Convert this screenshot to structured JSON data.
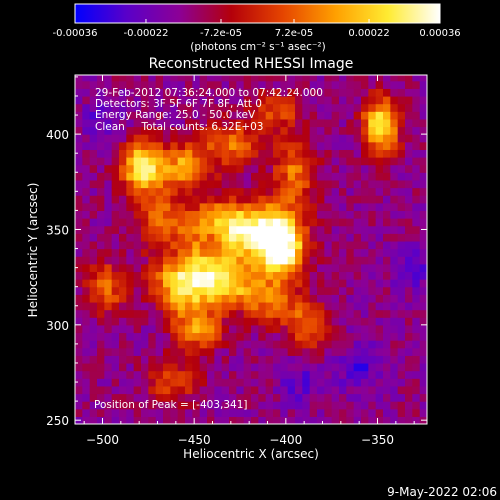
{
  "colorbar": {
    "ticks": [
      "-0.00036",
      "-0.00022",
      "-7.2e-05",
      "7.2e-05",
      "0.00022",
      "0.00036"
    ],
    "tick_values": [
      -0.00036,
      -0.00022,
      -7.2e-05,
      7.2e-05,
      0.00022,
      0.00036
    ],
    "range": [
      -0.00036,
      0.00036
    ],
    "unit_label": "(photons cm⁻² s⁻¹ asec⁻²)",
    "colors": [
      "#0000ff",
      "#5a00c8",
      "#8c0096",
      "#b4000a",
      "#e64600",
      "#ffa000",
      "#ffeb32",
      "#ffffff"
    ]
  },
  "chart_data": {
    "type": "heatmap",
    "title": "Reconstructed RHESSI Image",
    "xlabel": "Heliocentric X (arcsec)",
    "ylabel": "Heliocentric Y (arcsec)",
    "xlim": [
      -515,
      -323
    ],
    "ylim": [
      248,
      431
    ],
    "xticks": [
      -500,
      -450,
      -400,
      -350
    ],
    "yticks": [
      250,
      300,
      350,
      400
    ],
    "xtick_labels": [
      "−500",
      "−450",
      "−400",
      "−350"
    ],
    "ytick_labels": [
      "250",
      "300",
      "350",
      "400"
    ],
    "annotations": [
      "29-Feb-2012 07:36:24.000 to 07:42:24.000",
      "Detectors: 3F 5F 6F 7F 8F, Att 0",
      "Energy Range: 25.0 - 50.0 keV",
      "Clean     Total counts: 6.32E+03"
    ],
    "peak_label": "Position of Peak = [-403,341]",
    "peak": [
      -403,
      341
    ],
    "sources": [
      {
        "x": -403,
        "y": 341,
        "amp": 1.0,
        "sx": 9,
        "sy": 12
      },
      {
        "x": -420,
        "y": 350,
        "amp": 0.75,
        "sx": 14,
        "sy": 10
      },
      {
        "x": -440,
        "y": 345,
        "amp": 0.55,
        "sx": 10,
        "sy": 14
      },
      {
        "x": -455,
        "y": 322,
        "amp": 0.8,
        "sx": 12,
        "sy": 10
      },
      {
        "x": -430,
        "y": 322,
        "amp": 0.55,
        "sx": 10,
        "sy": 8
      },
      {
        "x": -478,
        "y": 383,
        "amp": 0.85,
        "sx": 8,
        "sy": 9
      },
      {
        "x": -455,
        "y": 383,
        "amp": 0.55,
        "sx": 9,
        "sy": 8
      },
      {
        "x": -348,
        "y": 405,
        "amp": 0.8,
        "sx": 7,
        "sy": 10
      },
      {
        "x": -430,
        "y": 395,
        "amp": 0.45,
        "sx": 12,
        "sy": 8
      },
      {
        "x": -395,
        "y": 380,
        "amp": 0.45,
        "sx": 8,
        "sy": 12
      },
      {
        "x": -468,
        "y": 355,
        "amp": 0.45,
        "sx": 10,
        "sy": 10
      },
      {
        "x": -448,
        "y": 298,
        "amp": 0.55,
        "sx": 9,
        "sy": 8
      },
      {
        "x": -388,
        "y": 300,
        "amp": 0.45,
        "sx": 8,
        "sy": 9
      },
      {
        "x": -410,
        "y": 312,
        "amp": 0.4,
        "sx": 10,
        "sy": 8
      },
      {
        "x": -498,
        "y": 320,
        "amp": 0.4,
        "sx": 8,
        "sy": 10
      },
      {
        "x": -462,
        "y": 270,
        "amp": 0.35,
        "sx": 10,
        "sy": 8
      },
      {
        "x": -405,
        "y": 412,
        "amp": 0.35,
        "sx": 10,
        "sy": 7
      }
    ],
    "dips": [
      {
        "x": -438,
        "y": 343,
        "amp": 0.9,
        "sx": 6,
        "sy": 6
      },
      {
        "x": -360,
        "y": 277,
        "amp": 0.5,
        "sx": 9,
        "sy": 9
      },
      {
        "x": -330,
        "y": 330,
        "amp": 0.45,
        "sx": 8,
        "sy": 8
      },
      {
        "x": -500,
        "y": 408,
        "amp": 0.4,
        "sx": 8,
        "sy": 8
      },
      {
        "x": -392,
        "y": 270,
        "amp": 0.4,
        "sx": 8,
        "sy": 8
      }
    ]
  },
  "footer": {
    "timestamp": "9-May-2022 02:06"
  }
}
